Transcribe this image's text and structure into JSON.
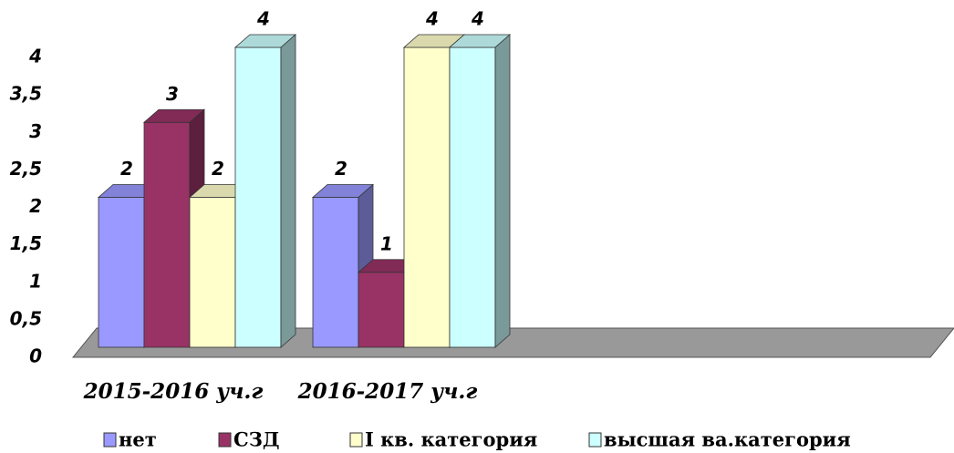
{
  "chart_data": {
    "type": "bar3d",
    "categories": [
      "2015-2016 уч.г",
      "2016-2017 уч.г"
    ],
    "series": [
      {
        "name": "нет",
        "color": "#9999ff",
        "values": [
          2,
          2
        ]
      },
      {
        "name": "СЗД",
        "color": "#993366",
        "values": [
          3,
          1
        ]
      },
      {
        "name": "I кв. категория",
        "color": "#ffffcc",
        "values": [
          2,
          4
        ]
      },
      {
        "name": "высшая ва.категория",
        "color": "#ccffff",
        "values": [
          4,
          4
        ]
      }
    ],
    "ylim": [
      0,
      4
    ],
    "yticks": [
      0,
      {
        "value": 0.5,
        "label": "0,5"
      },
      1,
      {
        "value": 1.5,
        "label": "1,5"
      },
      2,
      {
        "value": 2.5,
        "label": "2,5"
      },
      3,
      {
        "value": 3.5,
        "label": "3,5"
      },
      4
    ],
    "legend": "bottom"
  }
}
